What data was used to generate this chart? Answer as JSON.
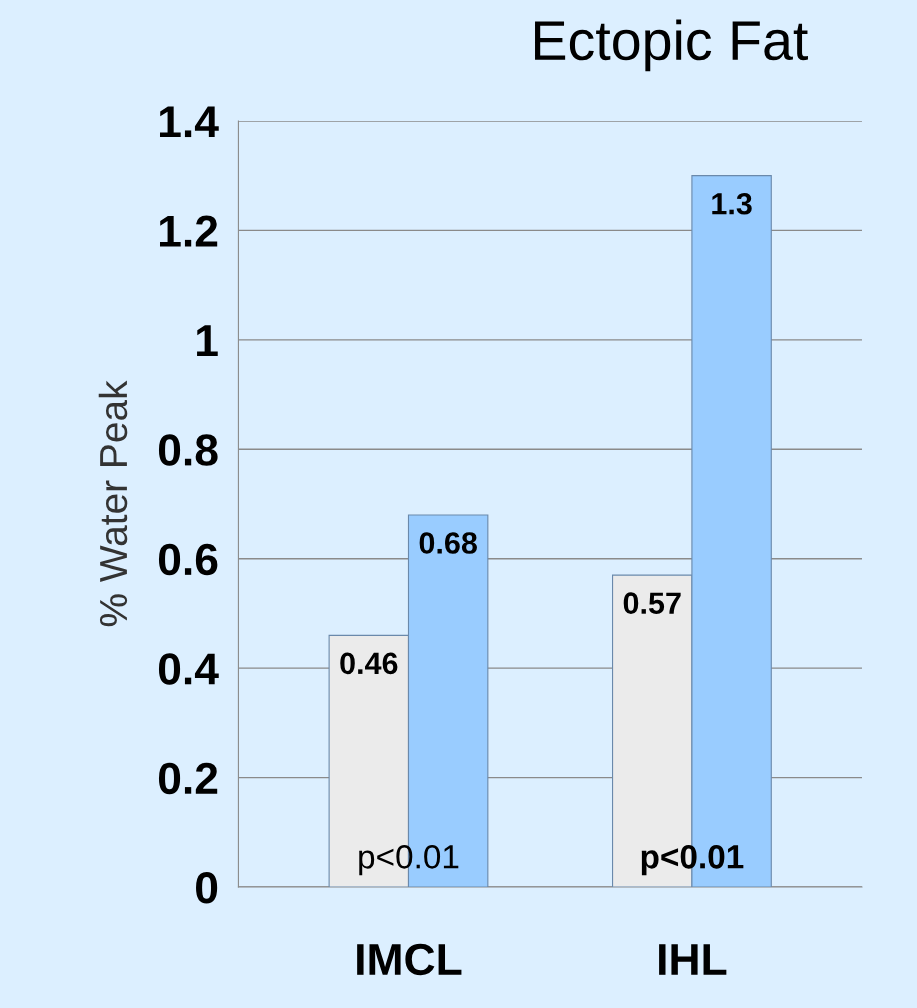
{
  "chart_data": {
    "type": "bar",
    "title": "Ectopic Fat",
    "ylabel": "% Water Peak",
    "categories": [
      "IMCL",
      "IHL"
    ],
    "series": [
      {
        "color": "#ebebeb",
        "values": [
          0.46,
          0.57
        ]
      },
      {
        "color": "#99ccff",
        "values": [
          0.68,
          1.3
        ]
      }
    ],
    "ylim": [
      0,
      1.4
    ],
    "yticks": [
      0,
      0.2,
      0.4,
      0.6,
      0.8,
      1,
      1.2,
      1.4
    ],
    "grid": "y",
    "data_labels": true,
    "annotations": [
      {
        "text": "p<0.01",
        "x": "IMCL",
        "y": 0.05
      },
      {
        "text": "p<0.01",
        "x": "IHL",
        "y": 0.05
      }
    ]
  }
}
